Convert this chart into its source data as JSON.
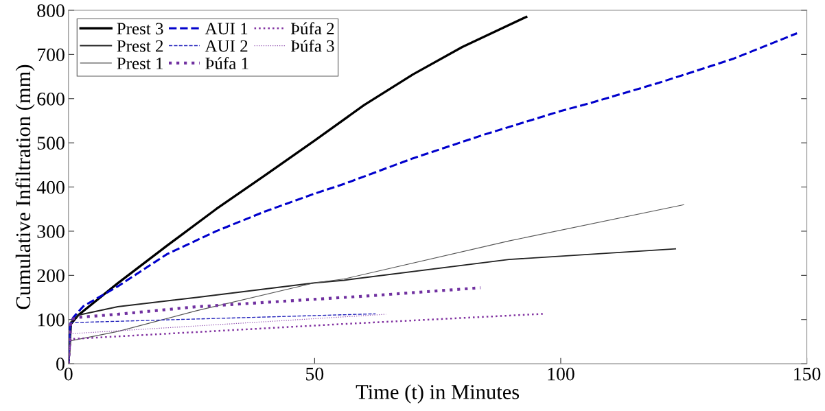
{
  "chart_data": {
    "type": "line",
    "xlabel": "Time (t) in Minutes",
    "ylabel": "Cumulative Infiltration (mm)",
    "xlim": [
      0,
      150
    ],
    "xticks": [
      0,
      50,
      100,
      150
    ],
    "ylim": [
      0,
      800
    ],
    "yticks": [
      0,
      100,
      200,
      300,
      400,
      500,
      600,
      700,
      800
    ],
    "grid": false,
    "legend": "top left",
    "marker": "none",
    "series": [
      {
        "name": "Prest 3",
        "color": "#000000",
        "line_style": "solid",
        "x": [
          0,
          0.5,
          2,
          10,
          20,
          30,
          40,
          50,
          60,
          70,
          80,
          93
        ],
        "values": [
          0,
          90,
          110,
          182,
          267,
          350,
          427,
          505,
          585,
          655,
          717,
          785
        ]
      },
      {
        "name": "Prest 2",
        "color": "#222222",
        "line_style": "solid",
        "x": [
          0,
          0.5,
          2,
          10,
          26,
          50,
          56,
          89.5,
          123.3
        ],
        "values": [
          0,
          95,
          110,
          129,
          150,
          183,
          189,
          236,
          260
        ]
      },
      {
        "name": "Prest 1",
        "color": "#555555",
        "line_style": "solid",
        "x": [
          0,
          0.5,
          10,
          26,
          50,
          56,
          89.5,
          125
        ],
        "values": [
          0,
          52,
          73,
          120,
          183,
          192,
          278,
          360
        ]
      },
      {
        "name": "AUI 1",
        "color": "#0000cc",
        "line_style": "dashed",
        "x": [
          0,
          0.3,
          1,
          3,
          10,
          20,
          30,
          40,
          50,
          56,
          70,
          84,
          100,
          106,
          120,
          135,
          148
        ],
        "values": [
          0,
          90,
          105,
          130,
          175,
          248,
          300,
          345,
          385,
          407,
          465,
          517,
          572,
          590,
          636,
          690,
          748
        ]
      },
      {
        "name": "AUI 2",
        "color": "#2222bb",
        "line_style": "dashed",
        "x": [
          0,
          0.5,
          62.4
        ],
        "values": [
          0,
          93,
          113
        ]
      },
      {
        "name": "Þúfa 1",
        "color": "#7030a0",
        "line_style": "dotted",
        "x": [
          0,
          0.5,
          2,
          10,
          26,
          61.5,
          83.7
        ],
        "values": [
          0,
          100,
          105,
          112,
          129,
          154,
          172
        ]
      },
      {
        "name": "Þúfa 2",
        "color": "#8030a0",
        "line_style": "dotted",
        "x": [
          0,
          0.5,
          55.9,
          96.6
        ],
        "values": [
          0,
          56,
          90,
          113
        ]
      },
      {
        "name": "Þúfa 3",
        "color": "#9050b0",
        "line_style": "dotted",
        "x": [
          0,
          0.5,
          64.5
        ],
        "values": [
          0,
          68,
          112
        ]
      }
    ]
  }
}
